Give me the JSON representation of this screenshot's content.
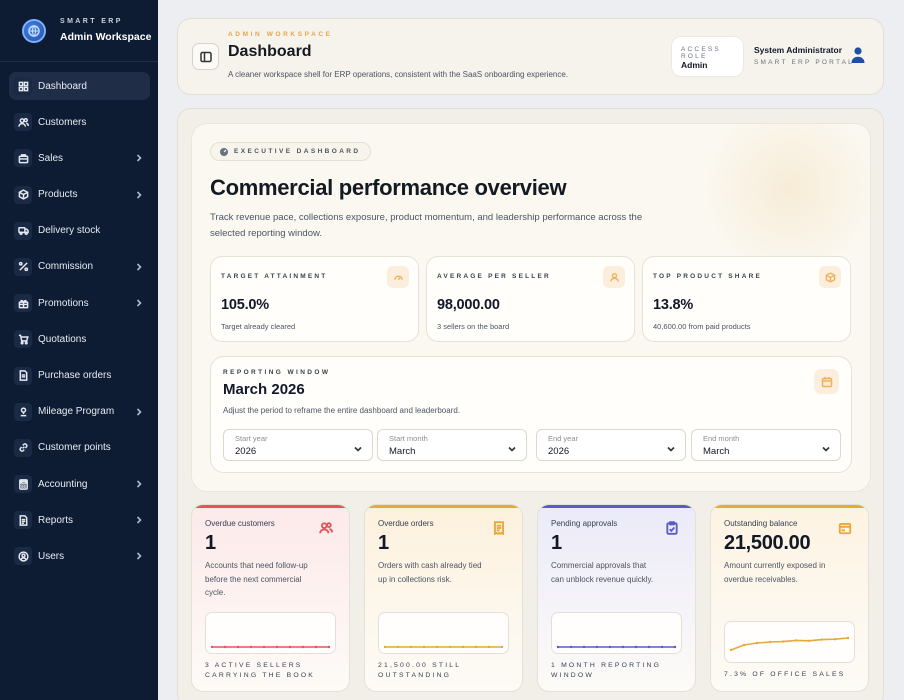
{
  "brand": {
    "kicker": "SMART ERP",
    "title": "Admin Workspace"
  },
  "sidebar": {
    "items": [
      {
        "label": "Dashboard",
        "icon": "dashboard-icon",
        "active": true,
        "expandable": false
      },
      {
        "label": "Customers",
        "icon": "users-icon",
        "active": false,
        "expandable": false
      },
      {
        "label": "Sales",
        "icon": "briefcase-icon",
        "active": false,
        "expandable": true
      },
      {
        "label": "Products",
        "icon": "box-icon",
        "active": false,
        "expandable": true
      },
      {
        "label": "Delivery stock",
        "icon": "truck-icon",
        "active": false,
        "expandable": false
      },
      {
        "label": "Commission",
        "icon": "percent-icon",
        "active": false,
        "expandable": true
      },
      {
        "label": "Promotions",
        "icon": "gift-icon",
        "active": false,
        "expandable": true
      },
      {
        "label": "Quotations",
        "icon": "cart-icon",
        "active": false,
        "expandable": false
      },
      {
        "label": "Purchase orders",
        "icon": "document-icon",
        "active": false,
        "expandable": false
      },
      {
        "label": "Mileage Program",
        "icon": "route-icon",
        "active": false,
        "expandable": true
      },
      {
        "label": "Customer points",
        "icon": "link-icon",
        "active": false,
        "expandable": false
      },
      {
        "label": "Accounting",
        "icon": "calculator-icon",
        "active": false,
        "expandable": true
      },
      {
        "label": "Reports",
        "icon": "report-icon",
        "active": false,
        "expandable": true
      },
      {
        "label": "Users",
        "icon": "user-circle-icon",
        "active": false,
        "expandable": true
      }
    ]
  },
  "header": {
    "kicker": "ADMIN WORKSPACE",
    "title": "Dashboard",
    "subtitle": "A cleaner workspace shell for ERP operations, consistent with the SaaS onboarding experience.",
    "access_role_kicker": "ACCESS ROLE",
    "access_role_value": "Admin",
    "user_name": "System Administrator",
    "user_portal": "SMART ERP PORTAL"
  },
  "hero": {
    "pill": "EXECUTIVE DASHBOARD",
    "title": "Commercial performance overview",
    "description": "Track revenue pace, collections exposure, product momentum, and leadership performance across the selected reporting window.",
    "kpis": [
      {
        "kicker": "TARGET ATTAINMENT",
        "value": "105.0%",
        "note": "Target already cleared",
        "icon": "gauge-icon"
      },
      {
        "kicker": "AVERAGE PER SELLER",
        "value": "98,000.00",
        "note": "3 sellers on the board",
        "icon": "user-icon"
      },
      {
        "kicker": "TOP PRODUCT SHARE",
        "value": "13.8%",
        "note": "40,600.00 from paid products",
        "icon": "box-icon"
      }
    ],
    "reporting": {
      "kicker": "REPORTING WINDOW",
      "title": "March 2026",
      "description": "Adjust the period to reframe the entire dashboard and leaderboard.",
      "filters": [
        {
          "label": "Start year",
          "value": "2026"
        },
        {
          "label": "Start month",
          "value": "March"
        },
        {
          "label": "End year",
          "value": "2026"
        },
        {
          "label": "End month",
          "value": "March"
        }
      ]
    }
  },
  "stats": [
    {
      "label": "Overdue customers",
      "value": "1",
      "description": "Accounts that need follow-up before the next commercial cycle.",
      "footer": "3 ACTIVE SELLERS CARRYING THE BOOK",
      "icon": "users-icon",
      "accent": "#e0565b",
      "bg_from": "#fde9ea",
      "trend": [
        1,
        1,
        1,
        1,
        1,
        1,
        1,
        1,
        1,
        1
      ]
    },
    {
      "label": "Overdue orders",
      "value": "1",
      "description": "Orders with cash already tied up in collections risk.",
      "footer": "21,500.00 STILL OUTSTANDING",
      "icon": "receipt-icon",
      "accent": "#e6a93a",
      "bg_from": "#fdf1dd",
      "trend": [
        1,
        1,
        1,
        1,
        1,
        1,
        1,
        1,
        1,
        1
      ]
    },
    {
      "label": "Pending approvals",
      "value": "1",
      "description": "Commercial approvals that can unblock revenue quickly.",
      "footer": "1 MONTH REPORTING WINDOW",
      "icon": "clipboard-check-icon",
      "accent": "#5b5bc8",
      "bg_from": "#ebeaf9",
      "trend": [
        1,
        1,
        1,
        1,
        1,
        1,
        1,
        1,
        1,
        1
      ]
    },
    {
      "label": "Outstanding balance",
      "value": "21,500.00",
      "description": "Amount currently exposed in overdue receivables.",
      "footer": "7.3% OF OFFICE SALES",
      "icon": "wallet-icon",
      "accent": "#e6a93a",
      "bg_from": "#fdf3e2",
      "trend": [
        0.2,
        0.45,
        0.55,
        0.6,
        0.62,
        0.68,
        0.66,
        0.72,
        0.74,
        0.8
      ]
    }
  ]
}
